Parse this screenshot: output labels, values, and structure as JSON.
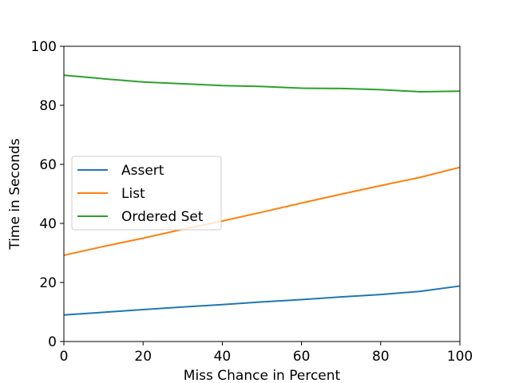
{
  "chart_data": {
    "type": "line",
    "title": "",
    "xlabel": "Miss Chance in Percent",
    "ylabel": "Time in Seconds",
    "xlim": [
      0,
      100
    ],
    "ylim": [
      0,
      100
    ],
    "xticks": [
      0,
      20,
      40,
      60,
      80,
      100
    ],
    "yticks": [
      0,
      20,
      40,
      60,
      80,
      100
    ],
    "grid": false,
    "legend_position": "center-left",
    "x": [
      0,
      10,
      20,
      30,
      40,
      50,
      60,
      70,
      80,
      90,
      100
    ],
    "series": [
      {
        "name": "Assert",
        "color": "#1f77b4",
        "values": [
          9.0,
          9.9,
          10.8,
          11.7,
          12.5,
          13.4,
          14.2,
          15.1,
          15.9,
          17.0,
          18.8
        ]
      },
      {
        "name": "List",
        "color": "#ff7f0e",
        "values": [
          29.2,
          32.2,
          35.0,
          38.0,
          40.8,
          43.8,
          46.9,
          49.9,
          52.8,
          55.6,
          59.0
        ]
      },
      {
        "name": "Ordered Set",
        "color": "#2ca02c",
        "values": [
          90.2,
          89.0,
          87.9,
          87.3,
          86.7,
          86.4,
          85.8,
          85.7,
          85.3,
          84.6,
          84.8
        ]
      }
    ]
  }
}
